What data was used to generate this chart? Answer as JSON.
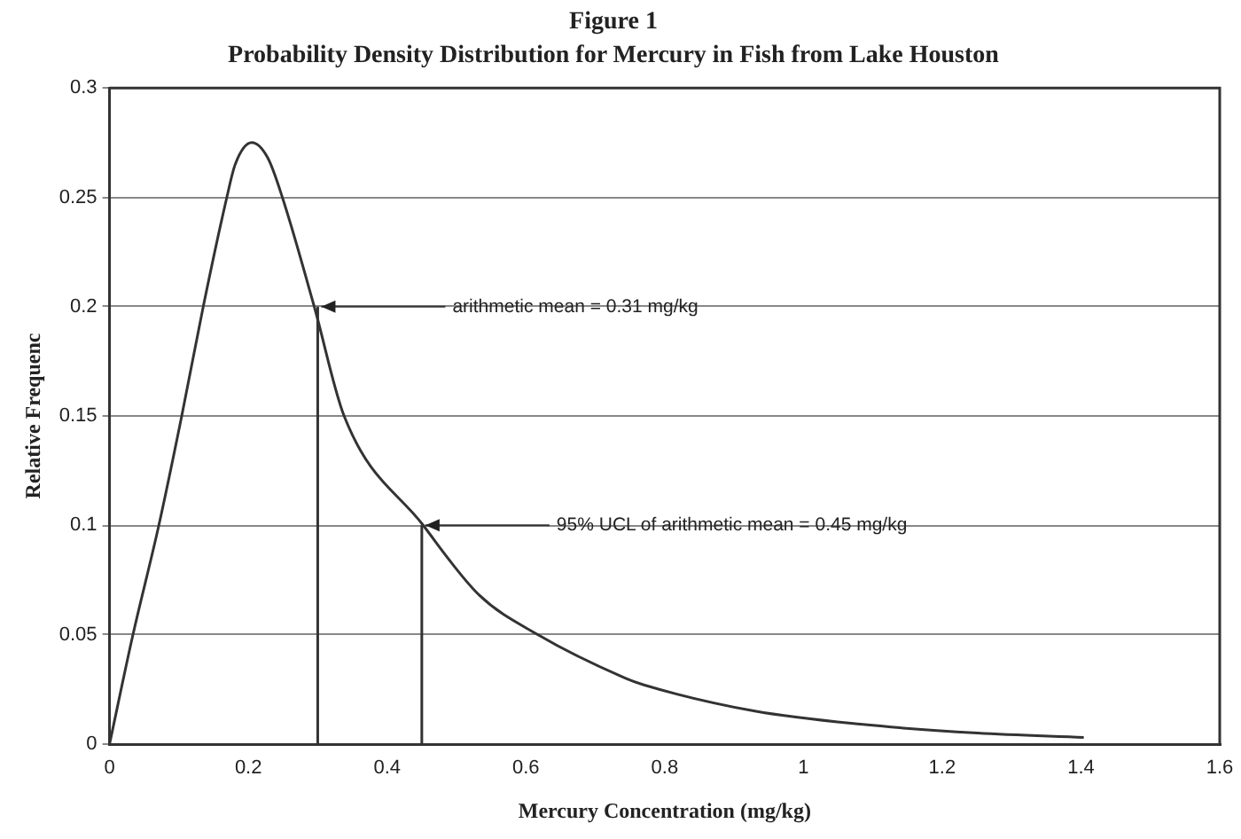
{
  "chart_data": {
    "type": "line",
    "title": "Figure 1",
    "subtitle": "Probability Density Distribution for Mercury in Fish from Lake Houston",
    "xlabel": "Mercury Concentration (mg/kg)",
    "ylabel": "Relative Frequenc",
    "xlim": [
      0,
      1.6
    ],
    "xticks": [
      0,
      0.2,
      0.4,
      0.6,
      0.8,
      1,
      1.2,
      1.4,
      1.6
    ],
    "ylim": [
      0,
      0.3
    ],
    "yticks": [
      0,
      0.05,
      0.1,
      0.15,
      0.2,
      0.25,
      0.3
    ],
    "grid": "y",
    "legend": false,
    "marker": "none",
    "line_style": "solid",
    "series": [
      {
        "color": "#333333",
        "x": [
          0,
          0.033,
          0.071,
          0.104,
          0.135,
          0.169,
          0.181,
          0.205,
          0.228,
          0.249,
          0.295,
          0.338,
          0.452,
          0.533,
          0.617,
          0.744,
          0.77,
          0.93,
          1.082,
          1.251,
          1.404
        ],
        "values": [
          0,
          0.049,
          0.1,
          0.15,
          0.2,
          0.25,
          0.265,
          0.275,
          0.268,
          0.25,
          0.2,
          0.15,
          0.1,
          0.068,
          0.05,
          0.03,
          0.027,
          0.015,
          0.009,
          0.005,
          0.003
        ]
      },
      {
        "color": "#333333",
        "x": [
          0.3,
          0.3
        ],
        "values": [
          0,
          0.2
        ]
      },
      {
        "color": "#333333",
        "x": [
          0.45,
          0.45
        ],
        "values": [
          0,
          0.1
        ]
      }
    ],
    "annotations": [
      {
        "text": "arithmetic mean = 0.31 mg/kg",
        "x": 0.3,
        "y": 0.2
      },
      {
        "text": "95% UCL of arithmetic mean = 0.45 mg/kg",
        "x": 0.45,
        "y": 0.1
      }
    ]
  }
}
